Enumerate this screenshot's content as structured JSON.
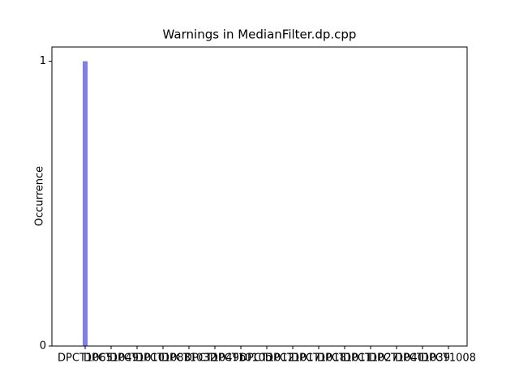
{
  "chart_data": {
    "type": "bar",
    "title": "Warnings in MedianFilter.dp.cpp",
    "y_label": "Occurrence",
    "categories": [
      "DPCT1065",
      "DPCT1049",
      "DPCT1010",
      "DPCT1083",
      "DPCT1032",
      "DPCT1049b",
      "DPCT1010b",
      "DPCT1012",
      "DPCT1017",
      "DPCT1018",
      "DPCT1011",
      "DPCT1027",
      "DPCT1040",
      "DPCT1039",
      "DPCT1008"
    ],
    "values": [
      1,
      0,
      0,
      0,
      0,
      0,
      0,
      0,
      0,
      0,
      0,
      0,
      0,
      0,
      0
    ],
    "color": "#7f7fe6",
    "ylim": [
      0,
      1.05
    ],
    "yticks": [
      0,
      1
    ],
    "grid": false
  }
}
